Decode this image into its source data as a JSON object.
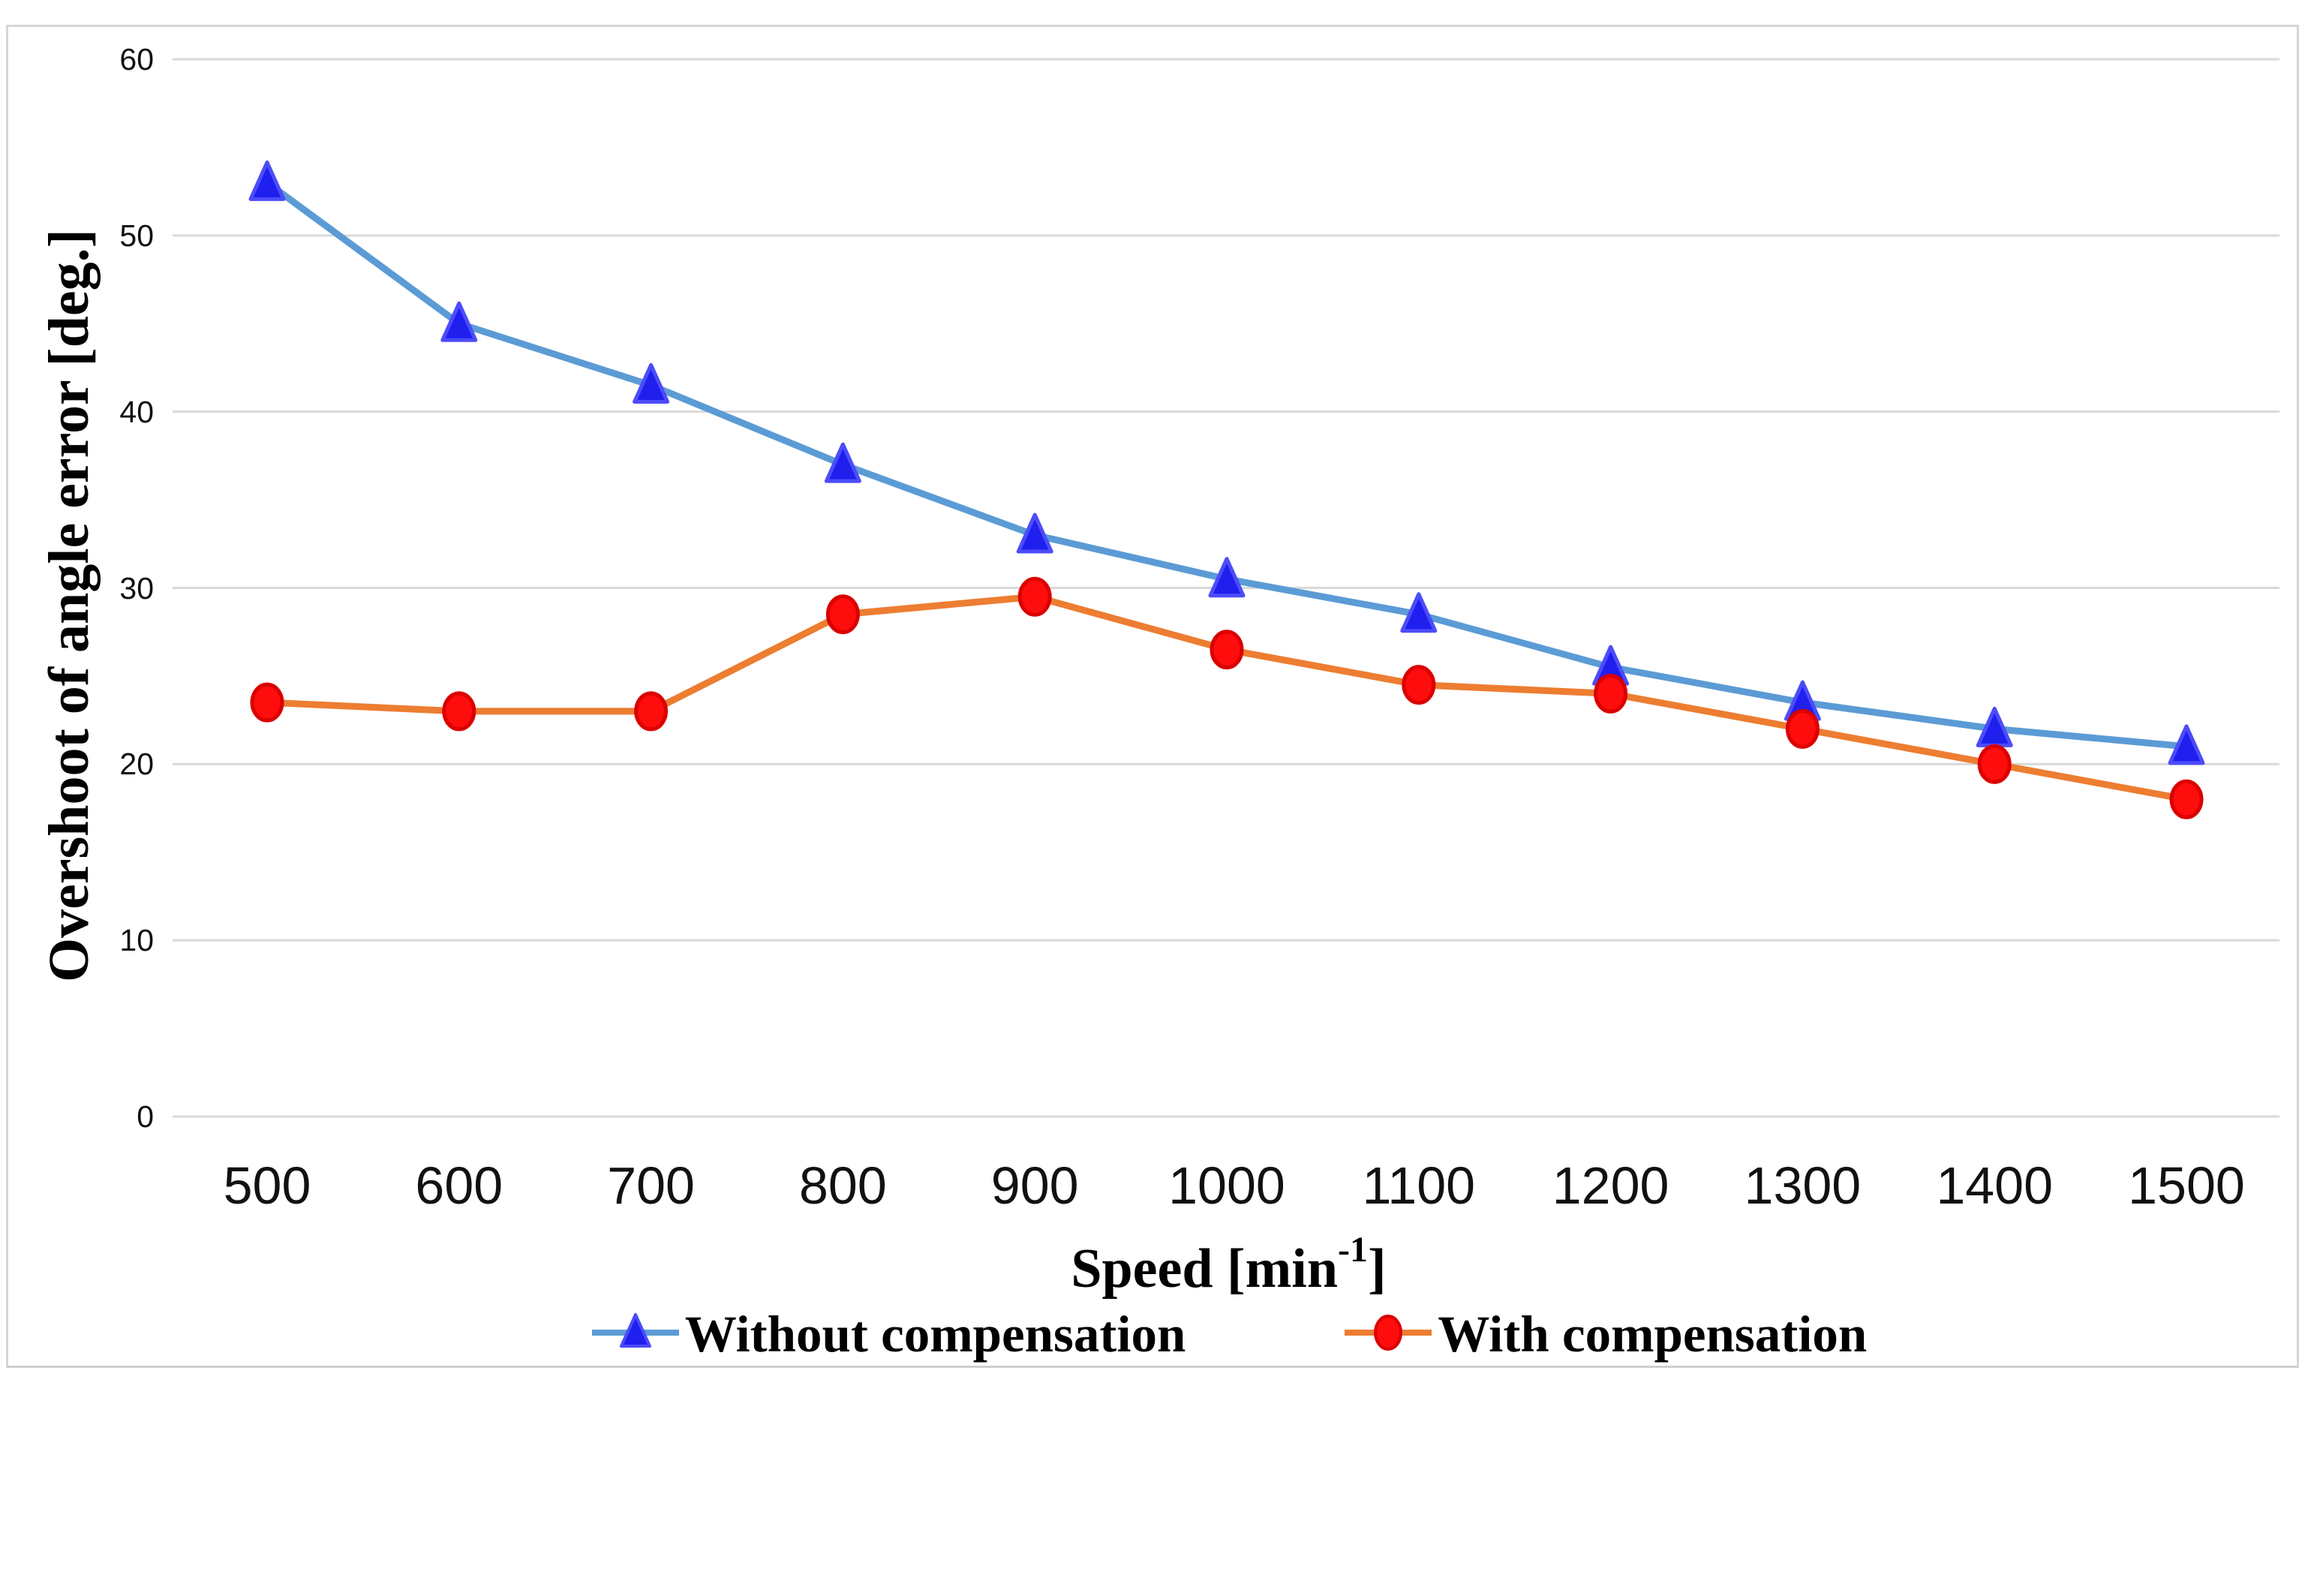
{
  "chart_data": {
    "type": "line",
    "title": "",
    "ylabel": "Overshoot of angle error [deg.]",
    "xlabel_prefix": "Speed [min",
    "xlabel_sup": "-1",
    "xlabel_suffix": "]",
    "categories": [
      500,
      600,
      700,
      800,
      900,
      1000,
      1100,
      1200,
      1300,
      1400,
      1500
    ],
    "x_tick_labels": [
      "500",
      "600",
      "700",
      "800",
      "900",
      "1000",
      "1100",
      "1200",
      "1300",
      "1400",
      "1500"
    ],
    "y_ticks": [
      60,
      50,
      40,
      30,
      20,
      10,
      0
    ],
    "ylim": [
      0,
      60
    ],
    "grid": "horizontal",
    "legend_position": "bottom",
    "series": [
      {
        "name": "Without compensation",
        "marker": "triangle",
        "line_color": "#5B9BD5",
        "marker_fill": "#1F1FEE",
        "marker_stroke": "#4C4CFA",
        "values": [
          53,
          45,
          41.5,
          37,
          33,
          30.5,
          28.5,
          25.5,
          23.5,
          22,
          21
        ]
      },
      {
        "name": "With compensation",
        "marker": "circle",
        "line_color": "#ED7D31",
        "marker_fill": "#FF0D0D",
        "marker_stroke": "#DB0000",
        "values": [
          23.5,
          23,
          23,
          28.5,
          29.5,
          26.5,
          24.5,
          24,
          22,
          20,
          18
        ]
      }
    ]
  },
  "colors": {
    "grid": "#D9D9D9",
    "canvas_border": "#D6D6D6",
    "tick_text": "#111111",
    "title_text": "#000000",
    "background": "#FFFFFF"
  }
}
